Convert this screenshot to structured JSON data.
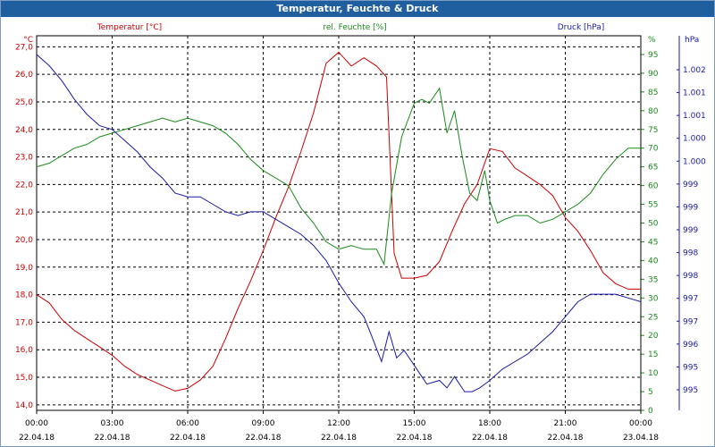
{
  "window": {
    "title": "Temperatur, Feuchte & Druck"
  },
  "colors": {
    "temperature": "#cc0000",
    "humidity": "#1a8a1a",
    "pressure": "#1a1aa8",
    "titlebar": "#1f5fa0",
    "grid": "#000000"
  },
  "chart_data": {
    "type": "line",
    "grid": true,
    "axes": {
      "temperature": {
        "label": "Temperatur [°C]",
        "unit": "°C",
        "ylim": [
          13.8,
          27.4
        ],
        "ticks": [
          "27,0",
          "26,0",
          "25,0",
          "24,0",
          "23,0",
          "22,0",
          "21,0",
          "20,0",
          "19,0",
          "18,0",
          "17,0",
          "16,0",
          "15,0",
          "14,0"
        ]
      },
      "humidity": {
        "label": "rel. Feuchte [%]",
        "unit": "%",
        "ylim": [
          0,
          100
        ],
        "ticks": [
          "95",
          "90",
          "85",
          "80",
          "75",
          "70",
          "65",
          "60",
          "55",
          "50",
          "45",
          "40",
          "35",
          "30",
          "25",
          "20",
          "15",
          "10",
          "5",
          "0"
        ]
      },
      "pressure": {
        "label": "Druck [hPa]",
        "unit": "hPa",
        "ticks": [
          "1.002",
          "1.001",
          "1.001",
          "1.000",
          "1.000",
          "999",
          "999",
          "999",
          "998",
          "998",
          "997",
          "997",
          "996",
          "995",
          "995"
        ]
      }
    },
    "x_ticks": [
      {
        "time": "00:00",
        "date": "22.04.18"
      },
      {
        "time": "03:00",
        "date": "22.04.18"
      },
      {
        "time": "06:00",
        "date": "22.04.18"
      },
      {
        "time": "09:00",
        "date": "22.04.18"
      },
      {
        "time": "12:00",
        "date": "22.04.18"
      },
      {
        "time": "15:00",
        "date": "22.04.18"
      },
      {
        "time": "18:00",
        "date": "22.04.18"
      },
      {
        "time": "21:00",
        "date": "22.04.18"
      },
      {
        "time": "00:00",
        "date": "23.04.18"
      }
    ],
    "series": [
      {
        "name": "Temperatur [°C]",
        "axis": "temperature",
        "x": [
          0,
          0.5,
          1,
          1.5,
          2,
          2.5,
          3,
          3.5,
          4,
          4.5,
          5,
          5.5,
          6,
          6.5,
          7,
          7.5,
          8,
          8.5,
          9,
          9.5,
          10,
          10.5,
          11,
          11.5,
          12,
          12.5,
          13,
          13.5,
          13.9,
          14.2,
          14.5,
          15,
          15.5,
          16,
          16.5,
          17,
          17.5,
          18,
          18.5,
          19,
          19.5,
          20,
          20.5,
          21,
          21.5,
          22,
          22.5,
          23,
          23.5,
          24
        ],
        "y": [
          18.0,
          17.7,
          17.1,
          16.7,
          16.4,
          16.1,
          15.8,
          15.4,
          15.1,
          14.9,
          14.7,
          14.5,
          14.6,
          14.9,
          15.4,
          16.4,
          17.5,
          18.5,
          19.6,
          20.8,
          21.9,
          23.2,
          24.6,
          26.4,
          26.8,
          26.3,
          26.6,
          26.3,
          25.9,
          19.5,
          18.6,
          18.6,
          18.7,
          19.2,
          20.3,
          21.3,
          22.0,
          23.3,
          23.2,
          22.6,
          22.3,
          22.0,
          21.6,
          20.8,
          20.3,
          19.6,
          18.8,
          18.4,
          18.2,
          18.2
        ]
      },
      {
        "name": "rel. Feuchte [%]",
        "axis": "humidity",
        "x": [
          0,
          0.5,
          1,
          1.5,
          2,
          2.5,
          3,
          3.5,
          4,
          4.5,
          5,
          5.5,
          6,
          6.5,
          7,
          7.5,
          8,
          8.5,
          9,
          9.5,
          10,
          10.5,
          11,
          11.5,
          12,
          12.5,
          13,
          13.5,
          13.8,
          14.1,
          14.5,
          15,
          15.3,
          15.6,
          16,
          16.3,
          16.6,
          16.9,
          17.2,
          17.5,
          17.8,
          18,
          18.3,
          18.6,
          19,
          19.5,
          20,
          20.5,
          21,
          21.5,
          22,
          22.5,
          23,
          23.5,
          24
        ],
        "y": [
          65,
          66,
          68,
          70,
          71,
          73,
          74,
          75,
          76,
          77,
          78,
          77,
          78,
          77,
          76,
          74,
          71,
          67,
          64,
          62,
          60,
          54,
          50,
          45,
          43,
          44,
          43,
          43,
          39,
          58,
          73,
          82,
          83,
          82,
          86,
          74,
          80,
          68,
          58,
          56,
          64,
          56,
          50,
          51,
          52,
          52,
          50,
          51,
          53,
          55,
          58,
          63,
          67,
          70,
          70
        ]
      },
      {
        "name": "Druck [hPa]",
        "axis": "pressure",
        "y_norm_is_plot_fraction": true,
        "x": [
          0,
          0.5,
          1,
          1.5,
          2,
          2.5,
          3,
          3.5,
          4,
          4.5,
          5,
          5.5,
          6,
          6.5,
          7,
          7.5,
          8,
          8.5,
          9,
          9.5,
          10,
          10.5,
          11,
          11.5,
          12,
          12.5,
          13,
          13.3,
          13.7,
          14,
          14.3,
          14.6,
          15,
          15.5,
          16,
          16.3,
          16.6,
          17,
          17.3,
          17.6,
          18,
          18.5,
          19,
          19.5,
          20,
          20.5,
          21,
          21.5,
          22,
          22.5,
          23,
          23.5,
          24
        ],
        "y": [
          0.95,
          0.92,
          0.88,
          0.83,
          0.79,
          0.76,
          0.75,
          0.72,
          0.69,
          0.65,
          0.62,
          0.58,
          0.57,
          0.57,
          0.55,
          0.53,
          0.52,
          0.53,
          0.53,
          0.51,
          0.49,
          0.47,
          0.44,
          0.4,
          0.34,
          0.29,
          0.25,
          0.2,
          0.13,
          0.21,
          0.14,
          0.16,
          0.12,
          0.07,
          0.08,
          0.06,
          0.09,
          0.05,
          0.05,
          0.06,
          0.08,
          0.11,
          0.13,
          0.15,
          0.18,
          0.21,
          0.25,
          0.29,
          0.31,
          0.31,
          0.31,
          0.3,
          0.29
        ]
      }
    ]
  }
}
